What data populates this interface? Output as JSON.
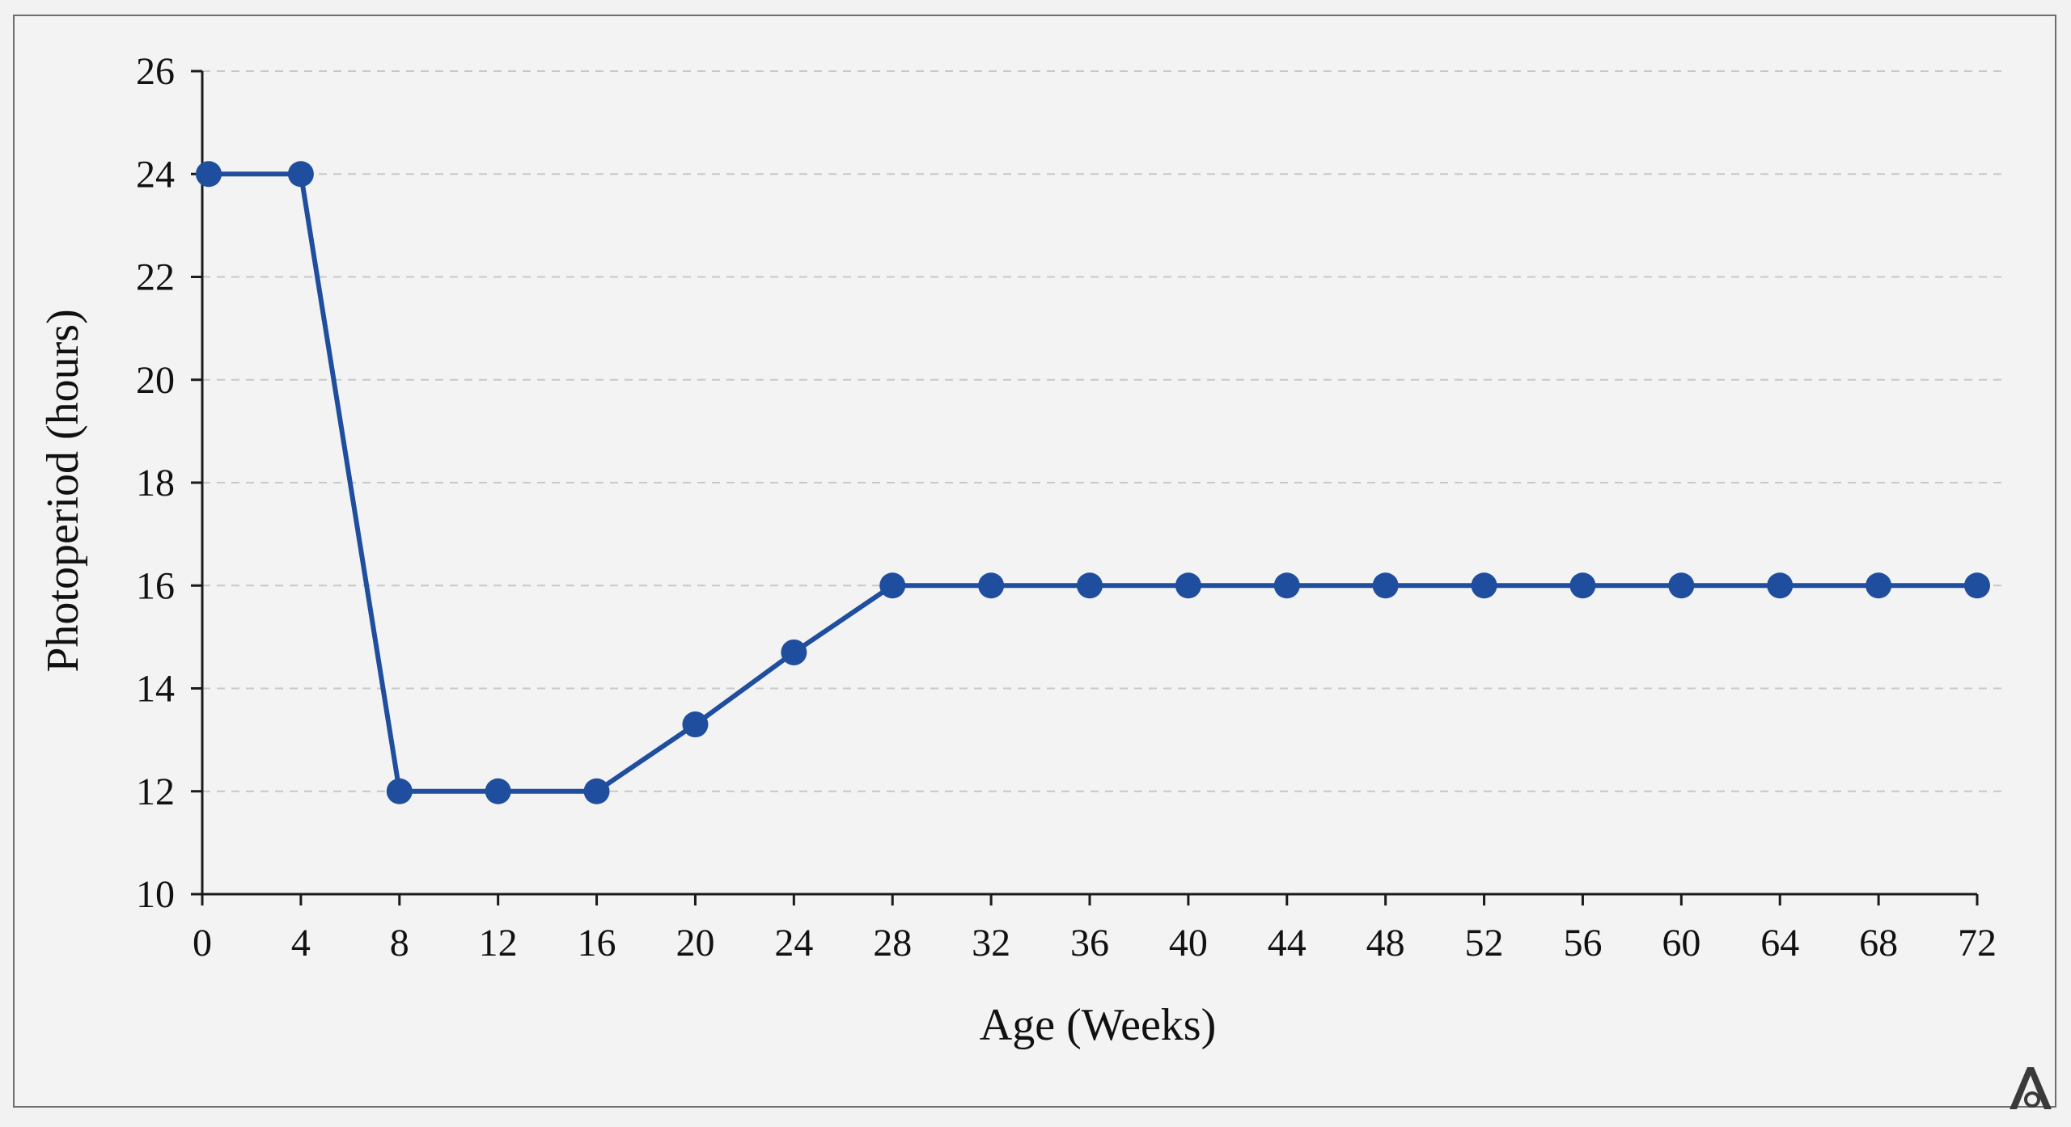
{
  "chart_data": {
    "type": "line",
    "xlabel": "Age (Weeks)",
    "ylabel": "Photoperiod (hours)",
    "xlim": [
      0,
      72
    ],
    "ylim": [
      10,
      26
    ],
    "x_ticks": [
      0,
      4,
      8,
      12,
      16,
      20,
      24,
      28,
      32,
      36,
      40,
      44,
      48,
      52,
      56,
      60,
      64,
      68,
      72
    ],
    "y_ticks": [
      10,
      12,
      14,
      16,
      18,
      20,
      22,
      24,
      26
    ],
    "grid": "horizontal dashed",
    "series": [
      {
        "color": "#1f4e9e",
        "marker": "circle",
        "x": [
          0,
          4,
          8,
          12,
          16,
          20,
          24,
          28,
          32,
          36,
          40,
          44,
          48,
          52,
          56,
          60,
          64,
          68,
          72
        ],
        "y": [
          24,
          24,
          12,
          12,
          12,
          13.3,
          14.7,
          16,
          16,
          16,
          16,
          16,
          16,
          16,
          16,
          16,
          16,
          16,
          16
        ]
      }
    ]
  },
  "watermark": {
    "icon": "logo-a-icon"
  }
}
